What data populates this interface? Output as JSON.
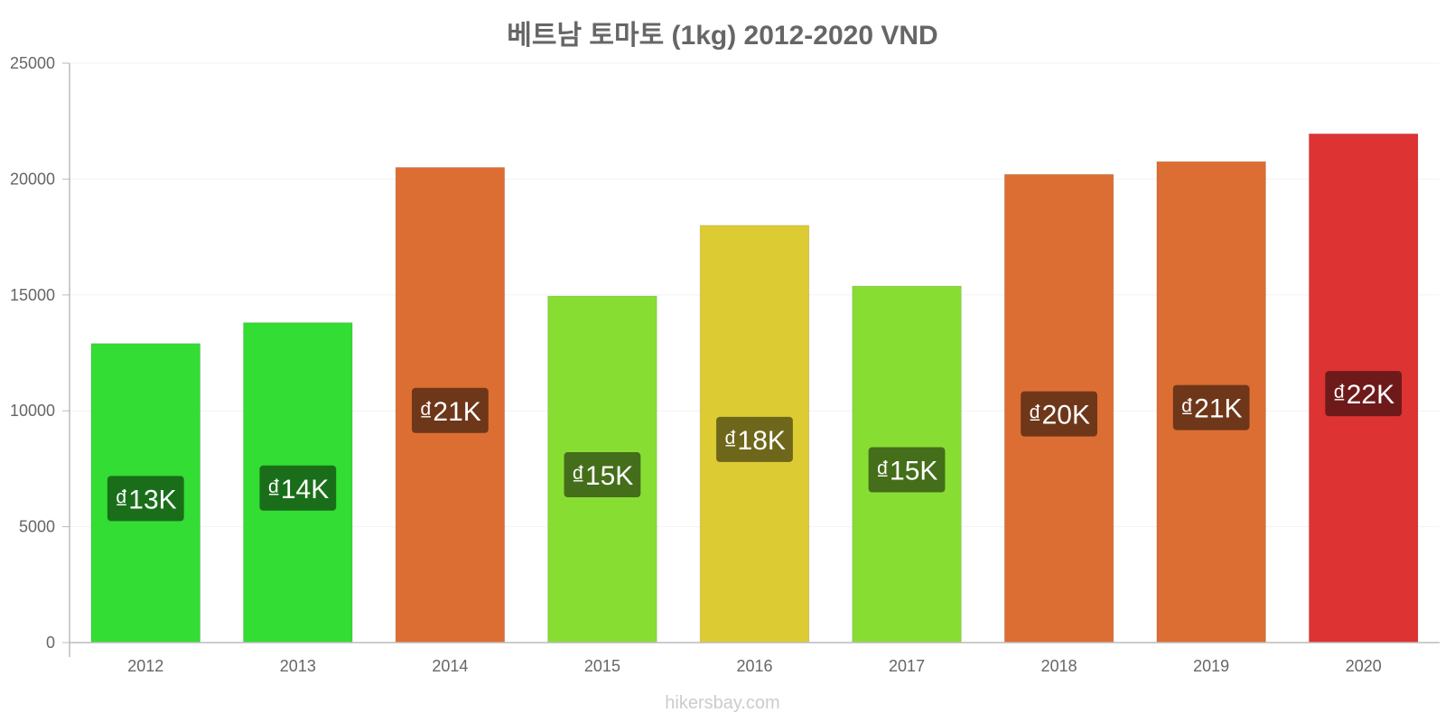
{
  "chart_data": {
    "type": "bar",
    "title": "베트남 토마토 (1kg) 2012-2020 VND",
    "xlabel": "",
    "ylabel": "",
    "ylim": [
      0,
      25000
    ],
    "yticks": [
      0,
      5000,
      10000,
      15000,
      20000,
      25000
    ],
    "categories": [
      "2012",
      "2013",
      "2014",
      "2015",
      "2016",
      "2017",
      "2018",
      "2019",
      "2020"
    ],
    "values": [
      12900,
      13800,
      20500,
      14950,
      18000,
      15380,
      20200,
      20750,
      21950
    ],
    "data_labels": [
      "₫13K",
      "₫14K",
      "₫21K",
      "₫15K",
      "₫18K",
      "₫15K",
      "₫20K",
      "₫21K",
      "₫22K"
    ],
    "bar_colors": [
      "#33dd33",
      "#33dd33",
      "#dd6e33",
      "#88dd33",
      "#dccb33",
      "#88dd33",
      "#dd6e33",
      "#dd6e33",
      "#dd3333"
    ],
    "label_colors": [
      "#1a6e1a",
      "#1a6e1a",
      "#6e371a",
      "#446e1a",
      "#6e661a",
      "#446e1a",
      "#6e371a",
      "#6e371a",
      "#6e1a1a"
    ],
    "grid": true,
    "legend": "none"
  },
  "footer": {
    "watermark": "hikersbay.com"
  }
}
